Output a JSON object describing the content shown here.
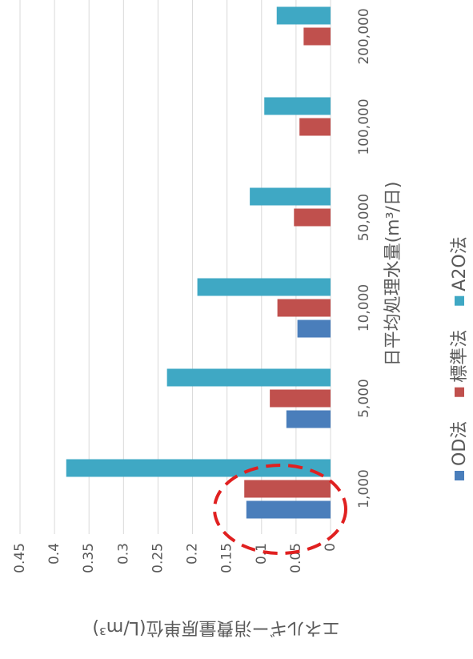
{
  "chart_data": {
    "type": "bar",
    "categories": [
      "1,000",
      "5,000",
      "10,000",
      "50,000",
      "100,000",
      "200,000"
    ],
    "series": [
      {
        "name": "OD法",
        "color": "#4a7ebb",
        "values": [
          0.122,
          0.064,
          0.048,
          null,
          null,
          null
        ]
      },
      {
        "name": "標準法",
        "color": "#c0504d",
        "values": [
          0.125,
          0.088,
          0.077,
          0.053,
          0.045,
          0.039
        ]
      },
      {
        "name": "A2O法",
        "color": "#3fa8c4",
        "values": [
          0.383,
          0.237,
          0.193,
          0.117,
          0.096,
          0.078
        ]
      }
    ],
    "xlabel": "日平均処理水量(m³/日)",
    "ylabel": "エネルギー消費量原単位(L/m³)",
    "ylim": [
      0,
      0.45
    ],
    "yticks": [
      0,
      0.05,
      0.1,
      0.15,
      0.2,
      0.25,
      0.3,
      0.35,
      0.4,
      0.45
    ],
    "grid": true,
    "legend": "bottom"
  }
}
